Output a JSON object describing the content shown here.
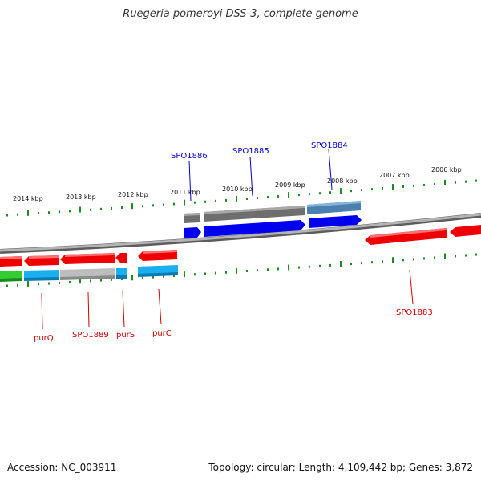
{
  "title": "Ruegeria pomeroyi DSS-3, complete genome",
  "footer": {
    "accession": "Accession: NC_003911",
    "summary": "Topology: circular; Length: 4,109,442 bp; Genes: 3,872"
  },
  "colors": {
    "forward_gene": "#0000ee",
    "forward_label": "#0000cc",
    "reverse_gene": "#ee0000",
    "reverse_label": "#cc0000",
    "cds_gray": "#6e6e6e",
    "cds_steel": "#4a80b0",
    "cds_light_gray": "#bdbdbd",
    "cds_cyan": "#1ab0f0",
    "cds_green": "#33cc33",
    "tick": "#228822",
    "backbone": "#888888"
  },
  "scale": {
    "unit": "kbp",
    "labels": [
      "2014 kbp",
      "2013 kbp",
      "2012 kbp",
      "2011 kbp",
      "2010 kbp",
      "2009 kbp",
      "2008 kbp",
      "2007 kbp",
      "2006 kbp"
    ]
  },
  "genes": {
    "forward": [
      "SPO1886",
      "SPO1885",
      "SPO1884"
    ],
    "reverse": [
      "purQ",
      "SPO1889",
      "purS",
      "purC",
      "SPO1883"
    ]
  }
}
